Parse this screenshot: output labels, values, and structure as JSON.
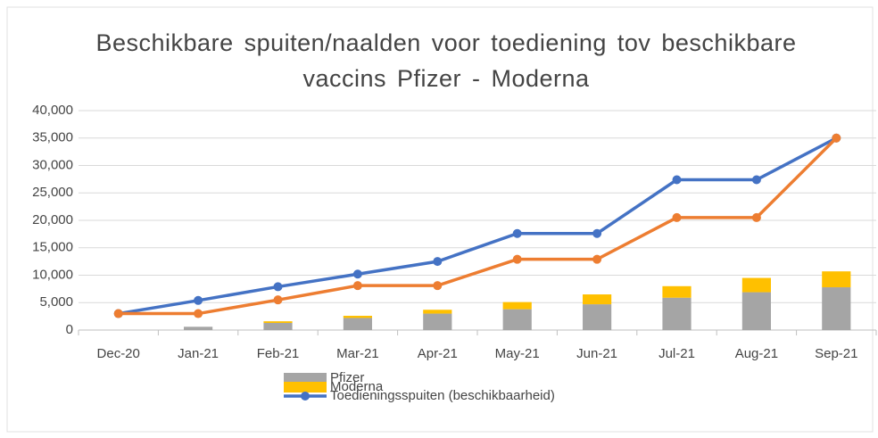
{
  "chart_data": {
    "type": "bar_line",
    "title": "Beschikbare spuiten/naalden voor toediening tov beschikbare vaccins Pfizer - Moderna",
    "categories": [
      "Dec-20",
      "Jan-21",
      "Feb-21",
      "Mar-21",
      "Apr-21",
      "May-21",
      "Jun-21",
      "Jul-21",
      "Aug-21",
      "Sep-21"
    ],
    "series": [
      {
        "name": "Pfizer",
        "type": "bar",
        "color": "#a5a5a5",
        "values": [
          0,
          600,
          1300,
          2200,
          3000,
          3800,
          4700,
          5900,
          6900,
          7800
        ]
      },
      {
        "name": "Moderna",
        "type": "bar",
        "color": "#ffc000",
        "values": [
          0,
          0,
          300,
          400,
          700,
          1300,
          1800,
          2100,
          2600,
          2900
        ]
      },
      {
        "name": "Toedieningsspuiten (beschikbaarheid)",
        "type": "line",
        "color": "#4472c4",
        "values": [
          3000,
          5400,
          7900,
          10200,
          12500,
          17600,
          17600,
          27400,
          27400,
          35000
        ]
      },
      {
        "type": "line",
        "color": "#ed7d31",
        "values": [
          3000,
          3000,
          5500,
          8100,
          8100,
          12900,
          12900,
          20500,
          20500,
          35000
        ]
      }
    ],
    "ylim": [
      0,
      40000
    ],
    "yticks": [
      0,
      {
        "value": 5000,
        "label": "5,000"
      },
      {
        "value": 10000,
        "label": "10,000"
      },
      {
        "value": 15000,
        "label": "15,000"
      },
      {
        "value": 20000,
        "label": "20,000"
      },
      {
        "value": 25000,
        "label": "25,000"
      },
      {
        "value": 30000,
        "label": "30,000"
      },
      {
        "value": 35000,
        "label": "35,000"
      },
      {
        "value": 40000,
        "label": "40,000"
      }
    ],
    "grid": true
  }
}
